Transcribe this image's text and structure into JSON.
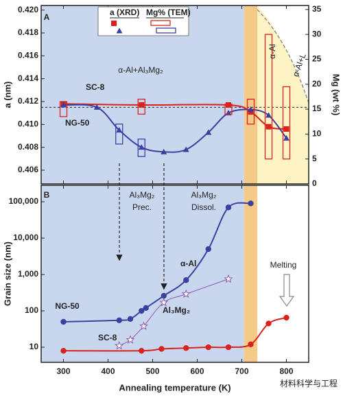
{
  "chart_data": [
    {
      "type": "line",
      "xlim": [
        250,
        850
      ],
      "xticks": [
        300,
        400,
        500,
        600,
        700,
        800
      ],
      "ylim": [
        0.4048,
        0.4204
      ],
      "yticks": [
        {
          "value": 0.406,
          "label": "0.406"
        },
        {
          "value": 0.408,
          "label": "0.408"
        },
        {
          "value": 0.41,
          "label": "0.410"
        },
        {
          "value": 0.412,
          "label": "0.412"
        },
        {
          "value": 0.414,
          "label": "0.414"
        },
        {
          "value": 0.416,
          "label": "0.416"
        },
        {
          "value": 0.418,
          "label": "0.418"
        },
        {
          "value": 0.42,
          "label": "0.420"
        }
      ],
      "y2lim": [
        0,
        35.8
      ],
      "y2ticks": [
        0,
        5,
        10,
        15,
        20,
        25,
        30,
        35
      ],
      "ylabel": "a (nm)",
      "y2label": "Mg (wt %)",
      "legend": [
        "a (XRD)",
        "Mg% (TEM)"
      ],
      "reference": 0.4115,
      "regions": [
        {
          "x": [
            250,
            705
          ],
          "color": "#c9d7ee"
        },
        {
          "x": [
            705,
            735
          ],
          "color": "#f5c987"
        },
        {
          "x": [
            735,
            850
          ],
          "color": "#fdf3c4"
        }
      ],
      "annotations": [
        "A",
        "α-Al+Al₃Mg₂",
        "α-Al",
        "α-Al+L"
      ],
      "series": [
        {
          "name": "SC-8",
          "color": "#d9221c",
          "marker": "square",
          "x": [
            300,
            475,
            670,
            720,
            760,
            800
          ],
          "values": [
            0.4118,
            0.4117,
            0.4117,
            0.4111,
            0.4098,
            0.4096
          ]
        },
        {
          "name": "NG-50",
          "color": "#3a3fa0",
          "marker": "triangle",
          "x": [
            300,
            375,
            425,
            475,
            525,
            575,
            625,
            670,
            720,
            760,
            800
          ],
          "values": [
            0.4117,
            0.4115,
            0.4095,
            0.408,
            0.4076,
            0.4078,
            0.4093,
            0.411,
            0.4113,
            0.4108,
            0.4088
          ]
        },
        {
          "color": "#d9221c",
          "axis": "y2",
          "x": [
            300,
            475,
            670,
            720,
            760,
            800
          ],
          "low": [
            13.5,
            14,
            14,
            12,
            5,
            5
          ],
          "high": [
            16.5,
            17,
            16,
            17,
            30,
            19.5
          ]
        },
        {
          "color": "#3a3fa0",
          "axis": "y2",
          "x": [
            425,
            475
          ],
          "low": [
            8,
            5.5
          ],
          "high": [
            12,
            9
          ]
        }
      ]
    },
    {
      "type": "line",
      "log": true,
      "xlim": [
        250,
        850
      ],
      "xticks": [
        300,
        400,
        500,
        600,
        700,
        800
      ],
      "ylim": [
        3.85,
        284000
      ],
      "yticks": [
        10,
        100,
        {
          "value": 1000,
          "label": "1,000"
        },
        {
          "value": 10000,
          "label": "10,000"
        },
        {
          "value": 100000,
          "label": "100,000"
        }
      ],
      "xlabel": "Annealing temperature (K)",
      "ylabel": "Grain size (nm)",
      "regions": [
        {
          "x": [
            250,
            705
          ],
          "color": "#c9d7ee"
        },
        {
          "x": [
            705,
            735
          ],
          "color": "#f5c987"
        },
        {
          "x": [
            735,
            850
          ],
          "color": "#ffffff"
        }
      ],
      "annotations": [
        "B",
        "Al₃Mg₂",
        "Prec.",
        "Al₃Mg₂",
        "Dissol.",
        "NG-50",
        "Melting"
      ],
      "series": [
        {
          "name": "α-Al",
          "color": "#3a3fa0",
          "marker": "circle",
          "x": [
            300,
            425,
            450,
            475,
            485,
            525,
            575,
            625,
            670,
            720
          ],
          "values": [
            50,
            55,
            60,
            100,
            120,
            260,
            700,
            5000,
            70000,
            90000
          ]
        },
        {
          "name": "Al₃Mg₂",
          "color": "#8e5ab0",
          "marker": "star",
          "x": [
            425,
            450,
            480,
            525,
            575,
            670
          ],
          "values": [
            11,
            16,
            38,
            170,
            290,
            750
          ]
        },
        {
          "name": "SC-8",
          "color": "#d9221c",
          "marker": "circle",
          "x": [
            300,
            475,
            520,
            575,
            625,
            670,
            720,
            760,
            800
          ],
          "values": [
            8,
            8,
            9,
            9.5,
            10,
            10,
            12,
            45,
            65
          ]
        }
      ]
    },
    {
      "type": "text",
      "watermark": "材料科学与工程"
    }
  ]
}
